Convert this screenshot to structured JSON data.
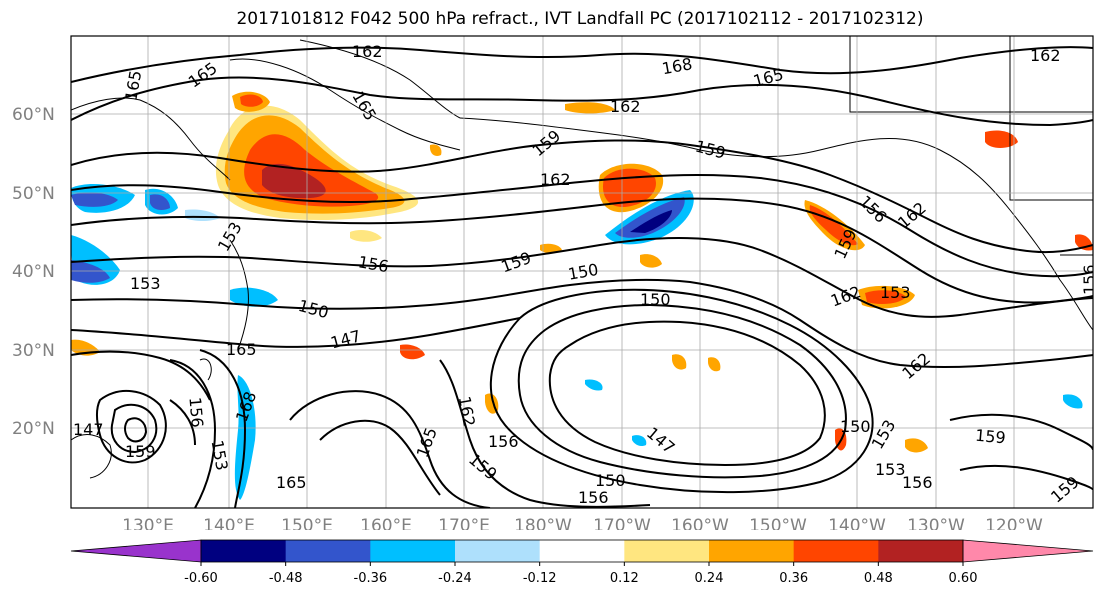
{
  "title": "2017101812 F042 500 hPa refract., IVT Landfall PC (2017102112 - 2017102312)",
  "lat_labels": [
    "60°N",
    "50°N",
    "40°N",
    "30°N",
    "20°N"
  ],
  "lon_labels": [
    "130°E",
    "140°E",
    "150°E",
    "160°E",
    "170°E",
    "180°W",
    "170°W",
    "160°W",
    "150°W",
    "140°W",
    "130°W",
    "120°W"
  ],
  "contour_labels": [
    "162",
    "165",
    "165",
    "168",
    "165",
    "162",
    "162",
    "165",
    "159",
    "162",
    "159",
    "156",
    "162",
    "159",
    "153",
    "156",
    "159",
    "150",
    "153",
    "150",
    "162",
    "153",
    "150",
    "147",
    "165",
    "162",
    "168",
    "156",
    "153",
    "159",
    "147",
    "162",
    "165",
    "156",
    "159",
    "147",
    "150",
    "156",
    "150",
    "153",
    "159",
    "153",
    "156",
    "159",
    "165",
    "156"
  ],
  "colorbar": {
    "colors": [
      "#9933cc",
      "#000080",
      "#3355cc",
      "#00bfff",
      "#aee0fc",
      "#ffffff",
      "#ffe680",
      "#ffa500",
      "#ff4500",
      "#b22222",
      "#ff88aa"
    ],
    "tick_labels": [
      "-0.60",
      "-0.48",
      "-0.36",
      "-0.24",
      "-0.12",
      "0.12",
      "0.24",
      "0.36",
      "0.48",
      "0.60"
    ]
  }
}
